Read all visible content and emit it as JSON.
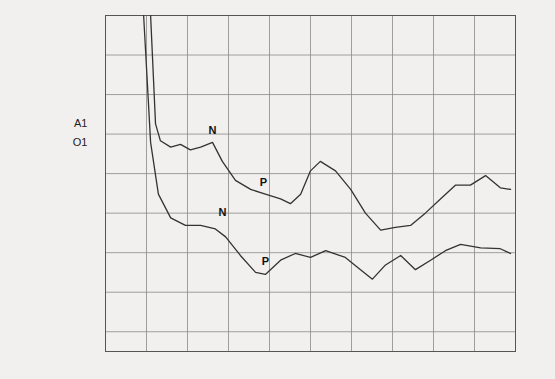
{
  "chart_data": {
    "type": "line",
    "xlim": [
      0,
      10
    ],
    "ylim": [
      -0.5,
      8
    ],
    "xticks": [
      0,
      1,
      2,
      3,
      4,
      5,
      6,
      7,
      8,
      9,
      10
    ],
    "yticks": [
      0,
      1,
      2,
      3,
      4,
      5,
      6,
      7,
      8
    ],
    "grid": true,
    "tick_labels": false,
    "series": [
      {
        "name": "A1",
        "color": "#333333",
        "x": [
          1.1,
          1.22,
          1.34,
          1.59,
          1.83,
          2.07,
          2.32,
          2.61,
          2.85,
          3.17,
          3.54,
          3.9,
          4.27,
          4.51,
          4.76,
          5.0,
          5.24,
          5.61,
          5.98,
          6.34,
          6.71,
          7.07,
          7.44,
          7.8,
          8.17,
          8.54,
          8.9,
          9.27,
          9.63,
          9.88
        ],
        "values": [
          8.0,
          5.26,
          4.83,
          4.67,
          4.74,
          4.6,
          4.67,
          4.79,
          4.31,
          3.83,
          3.6,
          3.48,
          3.36,
          3.24,
          3.48,
          4.07,
          4.31,
          4.07,
          3.6,
          3.0,
          2.57,
          2.64,
          2.69,
          3.0,
          3.36,
          3.71,
          3.71,
          3.95,
          3.64,
          3.6
        ]
      },
      {
        "name": "O1",
        "color": "#333333",
        "x": [
          0.93,
          1.1,
          1.29,
          1.59,
          1.95,
          2.32,
          2.68,
          2.93,
          3.29,
          3.66,
          3.9,
          4.27,
          4.63,
          5.0,
          5.37,
          5.85,
          6.22,
          6.51,
          6.83,
          7.2,
          7.56,
          7.93,
          8.29,
          8.66,
          9.15,
          9.63,
          9.88
        ],
        "values": [
          8.0,
          4.79,
          3.48,
          2.88,
          2.69,
          2.69,
          2.6,
          2.4,
          1.93,
          1.5,
          1.45,
          1.81,
          1.98,
          1.88,
          2.05,
          1.88,
          1.57,
          1.33,
          1.69,
          1.93,
          1.57,
          1.81,
          2.05,
          2.21,
          2.12,
          2.1,
          1.98
        ]
      }
    ],
    "annotations": [
      {
        "text": "N",
        "x": 2.61,
        "y": 4.93
      },
      {
        "text": "P",
        "x": 3.85,
        "y": 3.62
      },
      {
        "text": "N",
        "x": 2.85,
        "y": 2.86
      },
      {
        "text": "P",
        "x": 3.9,
        "y": 1.62
      }
    ]
  }
}
